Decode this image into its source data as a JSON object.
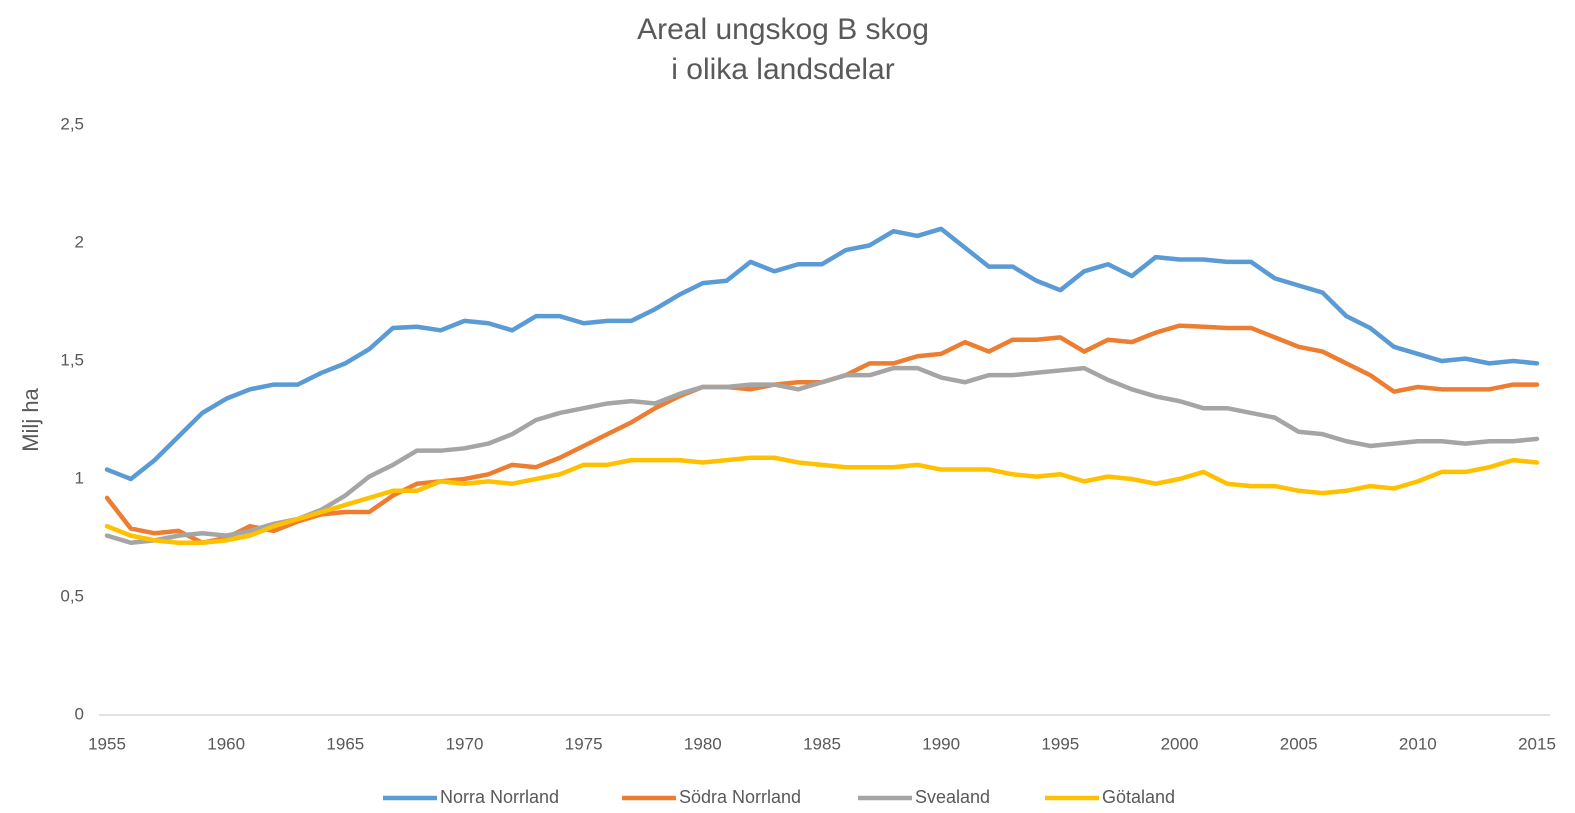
{
  "chart_data": {
    "type": "line",
    "title": [
      "Areal ungskog B skog",
      "i olika landsdelar"
    ],
    "ylabel": "Milj ha",
    "x": [
      1955,
      1956,
      1957,
      1958,
      1959,
      1960,
      1961,
      1962,
      1963,
      1964,
      1965,
      1966,
      1967,
      1968,
      1969,
      1970,
      1971,
      1972,
      1973,
      1974,
      1975,
      1976,
      1977,
      1978,
      1979,
      1980,
      1981,
      1982,
      1983,
      1984,
      1985,
      1986,
      1987,
      1988,
      1989,
      1990,
      1991,
      1992,
      1993,
      1994,
      1995,
      1996,
      1997,
      1998,
      1999,
      2000,
      2001,
      2002,
      2003,
      2004,
      2005,
      2006,
      2007,
      2008,
      2009,
      2010,
      2011,
      2012,
      2013,
      2014,
      2015
    ],
    "xlim": [
      1955,
      2015
    ],
    "xticks": [
      1955,
      1960,
      1965,
      1970,
      1975,
      1980,
      1985,
      1990,
      1995,
      2000,
      2005,
      2010,
      2015
    ],
    "ylim": [
      0,
      2.5
    ],
    "yticks": [
      0,
      {
        "value": 0.5,
        "label": "0,5"
      },
      1,
      {
        "value": 1.5,
        "label": "1,5"
      },
      2,
      {
        "value": 2.5,
        "label": "2,5"
      }
    ],
    "grid": false,
    "legend": "bottom",
    "series": [
      {
        "name": "Norra Norrland",
        "color": "#5b9bd5",
        "values": [
          1.04,
          1.0,
          1.08,
          1.18,
          1.28,
          1.34,
          1.38,
          1.4,
          1.4,
          1.45,
          1.49,
          1.55,
          1.64,
          1.645,
          1.63,
          1.67,
          1.66,
          1.63,
          1.69,
          1.69,
          1.66,
          1.67,
          1.67,
          1.72,
          1.78,
          1.83,
          1.84,
          1.92,
          1.88,
          1.91,
          1.91,
          1.97,
          1.99,
          2.05,
          2.03,
          2.06,
          1.98,
          1.9,
          1.9,
          1.84,
          1.8,
          1.88,
          1.91,
          1.86,
          1.94,
          1.93,
          1.93,
          1.92,
          1.92,
          1.85,
          1.82,
          1.79,
          1.69,
          1.64,
          1.56,
          1.53,
          1.5,
          1.51,
          1.49,
          1.5,
          1.49
        ]
      },
      {
        "name": "Södra Norrland",
        "color": "#ed7d31",
        "values": [
          0.92,
          0.79,
          0.77,
          0.78,
          0.73,
          0.75,
          0.8,
          0.78,
          0.82,
          0.85,
          0.86,
          0.86,
          0.93,
          0.98,
          0.99,
          1.0,
          1.02,
          1.06,
          1.05,
          1.09,
          1.14,
          1.19,
          1.24,
          1.3,
          1.35,
          1.39,
          1.39,
          1.38,
          1.4,
          1.41,
          1.41,
          1.44,
          1.49,
          1.49,
          1.52,
          1.53,
          1.58,
          1.54,
          1.59,
          1.59,
          1.6,
          1.54,
          1.59,
          1.58,
          1.62,
          1.65,
          1.645,
          1.64,
          1.64,
          1.6,
          1.56,
          1.54,
          1.49,
          1.44,
          1.37,
          1.39,
          1.38,
          1.38,
          1.38,
          1.4,
          1.4
        ]
      },
      {
        "name": "Svealand",
        "color": "#a5a5a5",
        "values": [
          0.76,
          0.73,
          0.74,
          0.76,
          0.77,
          0.76,
          0.78,
          0.81,
          0.83,
          0.87,
          0.93,
          1.01,
          1.06,
          1.12,
          1.12,
          1.13,
          1.15,
          1.19,
          1.25,
          1.28,
          1.3,
          1.32,
          1.33,
          1.32,
          1.36,
          1.39,
          1.39,
          1.4,
          1.4,
          1.38,
          1.41,
          1.44,
          1.44,
          1.47,
          1.47,
          1.43,
          1.41,
          1.44,
          1.44,
          1.45,
          1.46,
          1.47,
          1.42,
          1.38,
          1.35,
          1.33,
          1.3,
          1.3,
          1.28,
          1.26,
          1.2,
          1.19,
          1.16,
          1.14,
          1.15,
          1.16,
          1.16,
          1.15,
          1.16,
          1.16,
          1.17
        ]
      },
      {
        "name": "Götaland",
        "color": "#ffc000",
        "values": [
          0.8,
          0.76,
          0.74,
          0.73,
          0.73,
          0.74,
          0.76,
          0.8,
          0.83,
          0.86,
          0.89,
          0.92,
          0.95,
          0.95,
          0.99,
          0.98,
          0.99,
          0.98,
          1.0,
          1.02,
          1.06,
          1.06,
          1.08,
          1.08,
          1.08,
          1.07,
          1.08,
          1.09,
          1.09,
          1.07,
          1.06,
          1.05,
          1.05,
          1.05,
          1.06,
          1.04,
          1.04,
          1.04,
          1.02,
          1.01,
          1.02,
          0.99,
          1.01,
          1.0,
          0.98,
          1.0,
          1.03,
          0.98,
          0.97,
          0.97,
          0.95,
          0.94,
          0.95,
          0.97,
          0.96,
          0.99,
          1.03,
          1.03,
          1.05,
          1.08,
          1.07
        ]
      }
    ]
  }
}
